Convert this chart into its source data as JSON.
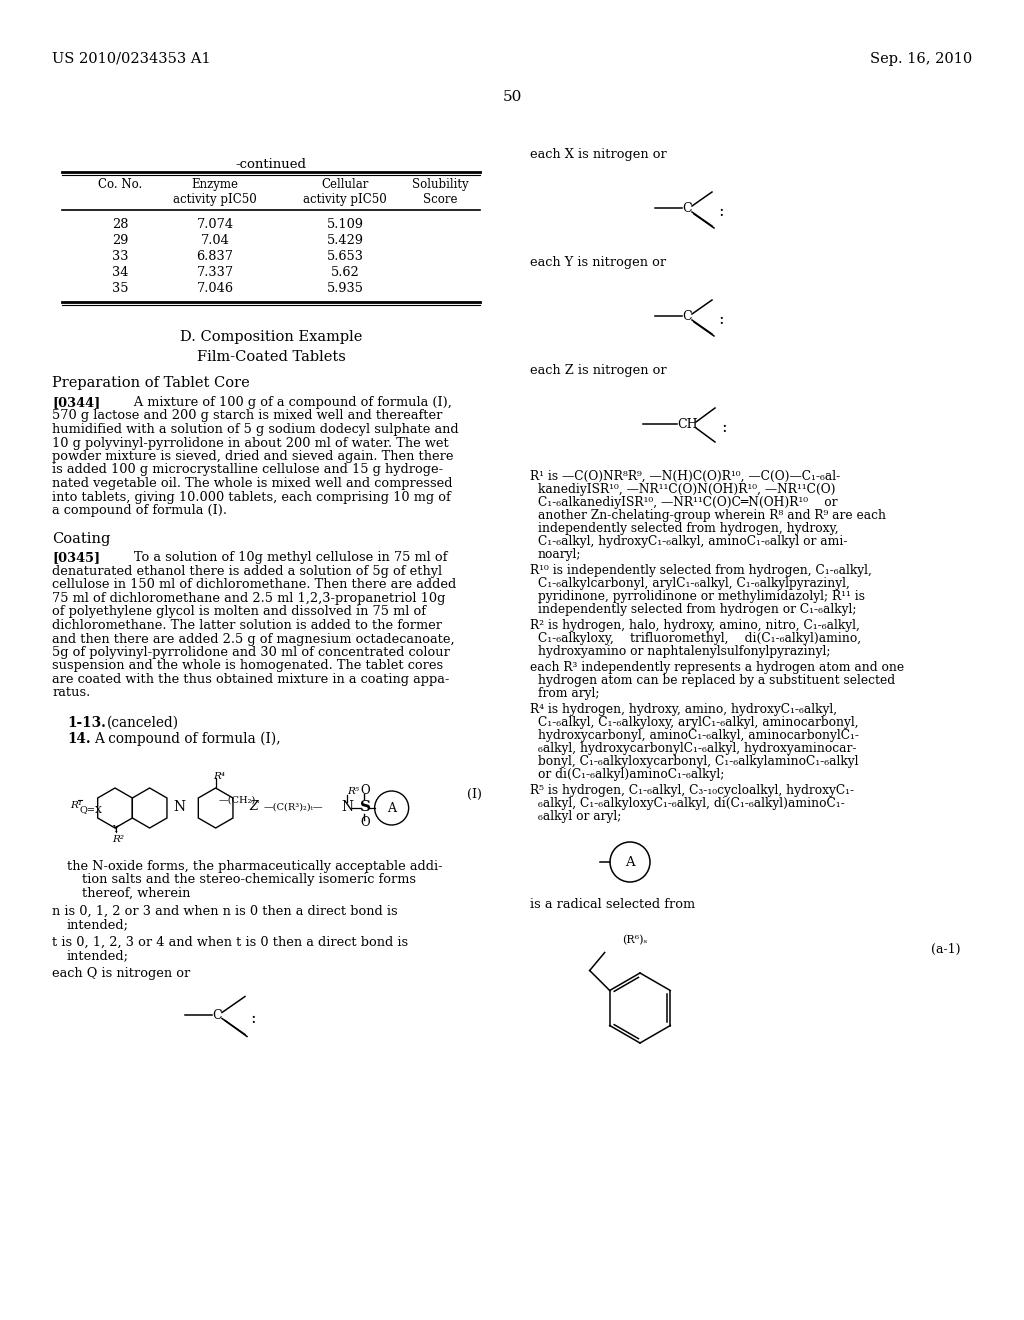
{
  "page_number": "50",
  "header_left": "US 2010/0234353 A1",
  "header_right": "Sep. 16, 2010",
  "bg_color": "#ffffff",
  "table_title": "-continued",
  "table_col_headers": [
    "Co. No.",
    "Enzyme\nactivity pIC50",
    "Cellular\nactivity pIC50",
    "Solubility\nScore"
  ],
  "table_data": [
    [
      "28",
      "7.074",
      "5.109",
      ""
    ],
    [
      "29",
      "7.04",
      "5.429",
      ""
    ],
    [
      "33",
      "6.837",
      "5.653",
      ""
    ],
    [
      "34",
      "7.337",
      "5.62",
      ""
    ],
    [
      "35",
      "7.046",
      "5.935",
      ""
    ]
  ],
  "section_d_title": "D. Composition Example",
  "section_d_sub": "Film-Coated Tablets",
  "prep_title": "Preparation of Tablet Core",
  "coating_title": "Coating",
  "claims_canceled": "1-13. (canceled)",
  "claims_14": "14. A compound of formula (I),",
  "formula_label": "(I)",
  "noxide_line1": "the N-oxide forms, the pharmaceutically acceptable addi-",
  "noxide_line2": "tion salts and the stereo-chemically isomeric forms",
  "noxide_line3": "thereof, wherein",
  "n_line1": "n is 0, 1, 2 or 3 and when n is 0 then a direct bond is",
  "n_line2": "intended;",
  "t_line1": "t is 0, 1, 2, 3 or 4 and when t is 0 then a direct bond is",
  "t_line2": "intended;",
  "q_text": "each Q is nitrogen or",
  "x_text": "each X is nitrogen or",
  "y_text": "each Y is nitrogen or",
  "z_text": "each Z is nitrogen or",
  "a_is_radical": "is a radical selected from",
  "radical_label": "(a-1)",
  "r6_label": "(R⁶)ₛ",
  "para_0344_lines": [
    "[0344]   A mixture of 100 g of a compound of formula (I),",
    "570 g lactose and 200 g starch is mixed well and thereafter",
    "humidified with a solution of 5 g sodium dodecyl sulphate and",
    "10 g polyvinyl-pyrrolidone in about 200 ml of water. The wet",
    "powder mixture is sieved, dried and sieved again. Then there",
    "is added 100 g microcrystalline cellulose and 15 g hydroge-",
    "nated vegetable oil. The whole is mixed well and compressed",
    "into tablets, giving 10.000 tablets, each comprising 10 mg of",
    "a compound of formula (I)."
  ],
  "para_0345_lines": [
    "[0345]   To a solution of 10g methyl cellulose in 75 ml of",
    "denaturated ethanol there is added a solution of 5g of ethyl",
    "cellulose in 150 ml of dichloromethane. Then there are added",
    "75 ml of dichloromethane and 2.5 ml 1,2,3-propanetriol 10g",
    "of polyethylene glycol is molten and dissolved in 75 ml of",
    "dichloromethane. The latter solution is added to the former",
    "and then there are added 2.5 g of magnesium octadecanoate,",
    "5g of polyvinyl-pyrrolidone and 30 ml of concentrated colour",
    "suspension and the whole is homogenated. The tablet cores",
    "are coated with the thus obtained mixture in a coating appa-",
    "ratus."
  ],
  "r1_lines": [
    "R¹ is —C(O)NR⁸R⁹, —N(H)C(O)R¹⁰, —C(O)—C₁-₆al-",
    "kanediyISR¹⁰, —NR¹¹C(O)N(OH)R¹⁰, —NR¹¹C(O)",
    "C₁-₆alkanediyISR¹⁰, —NR¹¹C(O)C═N(OH)R¹⁰  or",
    "another Zn-chelating-group wherein R⁸ and R⁹ are each",
    "independently selected from hydrogen, hydroxy,",
    "C₁-₆alkyl, hydroxyC₁-₆alkyl, aminoC₁-₆alkyl or ami-",
    "noaryl;"
  ],
  "r10_lines": [
    "R¹⁰ is independently selected from hydrogen, C₁-₆alkyl,",
    "C₁-₆alkylcarbonyl, arylC₁-₆alkyl, C₁-₆alkylpyrazinyl,",
    "pyridinone, pyrrolidinone or methylimidazolyl; R¹¹ is",
    "independently selected from hydrogen or C₁-₆alkyl;"
  ],
  "r2_lines": [
    "R² is hydrogen, halo, hydroxy, amino, nitro, C₁-₆alkyl,",
    "C₁-₆alkyloxy,  trifluoromethyl,  di(C₁-₆alkyl)amino,",
    "hydroxyamino or naphtalenylsulfonylpyrazinyl;"
  ],
  "r3_lines": [
    "each R³ independently represents a hydrogen atom and one",
    "hydrogen atom can be replaced by a substituent selected",
    "from aryl;"
  ],
  "r4_lines": [
    "R⁴ is hydrogen, hydroxy, amino, hydroxyC₁-₆alkyl,",
    "C₁-₆alkyl, C₁-₆alkyloxy, arylC₁-₆alkyl, aminocarbonyl,",
    "hydroxycarbonyl, aminoC₁-₆alkyl, aminocarbonylC₁-",
    "₆alkyl, hydroxycarbonylC₁-₆alkyl, hydroxyaminocar-",
    "bonyl, C₁-₆alkyloxycarbonyl, C₁-₆alkylaminoC₁-₆alkyl",
    "or di(C₁-₆alkyl)aminoC₁-₆alkyl;"
  ],
  "r5_lines": [
    "R⁵ is hydrogen, C₁-₆alkyl, C₃-₁₀cycloalkyl, hydroxyC₁-",
    "₆alkyl, C₁-₆alkyloxyC₁-₆alkyl, di(C₁-₆alkyl)aminoC₁-",
    "₆alkyl or aryl;"
  ]
}
